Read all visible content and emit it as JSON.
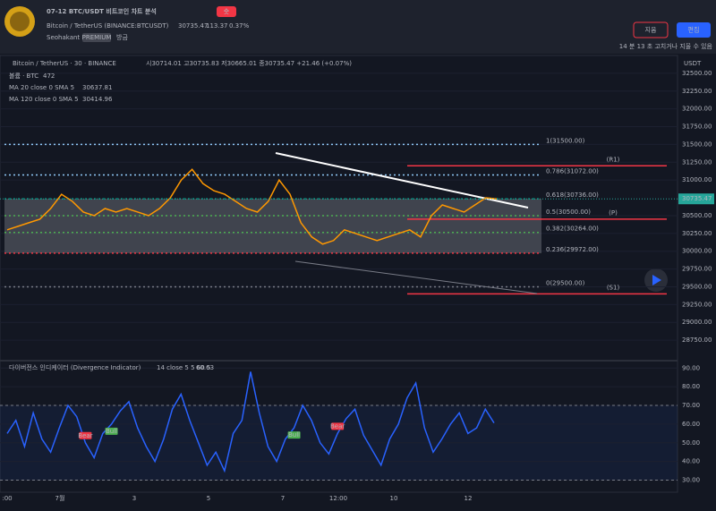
{
  "header": {
    "title": "07-12 BTC/USDT 비트코인 차트 분석",
    "tag": "숏",
    "symbol": "Bitcoin / TetherUS (BINANCE:BTCUSDT)",
    "price": "30735.47",
    "change": "113.37",
    "change_pct": "0.37%",
    "author": "Seohakant",
    "badge": "PREMIUM",
    "time": "방금",
    "delete_button": "지움",
    "edit_button": "편집",
    "edit_note": "14 분 13 초 고치거나 지울 수 있음"
  },
  "legend": {
    "symbol": "Bitcoin / TetherUS · 30 · BINANCE",
    "ohlc": "시30714.01 고30735.83 저30665.01 종30735.47 +21.46 (+0.07%)",
    "volume": "볼륨 · BTC",
    "volume_value": "472",
    "ma20": "MA 20 close 0 SMA 5",
    "ma20_value": "30637.81",
    "ma120": "MA 120 close 0 SMA 5",
    "ma120_value": "30414.96"
  },
  "chart_data": {
    "type": "line",
    "y_unit": "USDT",
    "ylim": [
      28500,
      32750
    ],
    "yticks": [
      {
        "value": 32500,
        "label": "32500.00"
      },
      {
        "value": 32250,
        "label": "32250.00"
      },
      {
        "value": 32000,
        "label": "32000.00"
      },
      {
        "value": 31750,
        "label": "31750.00"
      },
      {
        "value": 31500,
        "label": "31500.00"
      },
      {
        "value": 31250,
        "label": "31250.00"
      },
      {
        "value": 31000,
        "label": "31000.00"
      },
      {
        "value": 30500,
        "label": "30500.00"
      },
      {
        "value": 30250,
        "label": "30250.00"
      },
      {
        "value": 30000,
        "label": "30000.00"
      },
      {
        "value": 29750,
        "label": "29750.00"
      },
      {
        "value": 29500,
        "label": "29500.00"
      },
      {
        "value": 29250,
        "label": "29250.00"
      },
      {
        "value": 29000,
        "label": "29000.00"
      },
      {
        "value": 28750,
        "label": "28750.00"
      }
    ],
    "last_price": {
      "value": 30735.47,
      "label": "30735.47"
    },
    "series": [
      {
        "name": "Bitcoin / TetherUS",
        "color": "#ff9800",
        "values": [
          30300,
          30350,
          30400,
          30450,
          30600,
          30800,
          30700,
          30550,
          30500,
          30600,
          30550,
          30600,
          30550,
          30500,
          30600,
          30750,
          31000,
          31150,
          30950,
          30850,
          30800,
          30700,
          30600,
          30550,
          30700,
          31000,
          30800,
          30400,
          30200,
          30100,
          30150,
          30300,
          30250,
          30200,
          30150,
          30200,
          30250,
          30300,
          30200,
          30500,
          30650,
          30600,
          30550,
          30650,
          30750,
          30735.47
        ]
      }
    ],
    "fib_levels": [
      {
        "value": 31500,
        "label": "1(31500.00)"
      },
      {
        "value": 31072,
        "label": "0.786(31072.00)"
      },
      {
        "value": 30736,
        "label": "0.618(30736.00)"
      },
      {
        "value": 30500,
        "label": "0.5(30500.00)"
      },
      {
        "value": 30264,
        "label": "0.382(30264.00)"
      },
      {
        "value": 29972,
        "label": "0.236(29972.00)"
      },
      {
        "value": 29500,
        "label": "0(29500.00)"
      }
    ],
    "levels": [
      {
        "value": 31200,
        "label": "(R1)"
      },
      {
        "value": 30450,
        "label": "(P)"
      },
      {
        "value": 29400,
        "label": "(S1)"
      }
    ],
    "x_labels": [
      ":00",
      "7월",
      "3",
      "5",
      "7",
      "12:00",
      "10",
      "12"
    ]
  },
  "indicator": {
    "type": "line",
    "title": "다이버전스 인디케이터 (Divergence Indicator)",
    "params": "14 close 5 5 60 5",
    "value": "60.63",
    "color": "#2962ff",
    "ylim": [
      25,
      93
    ],
    "yticks": [
      {
        "value": 90,
        "label": "90.00"
      },
      {
        "value": 80,
        "label": "80.00"
      },
      {
        "value": 70,
        "label": "70.00"
      },
      {
        "value": 60,
        "label": "60.00"
      },
      {
        "value": 50,
        "label": "50.00"
      },
      {
        "value": 40,
        "label": "40.00"
      },
      {
        "value": 30,
        "label": "30.00"
      }
    ],
    "band": [
      30,
      70
    ],
    "values": [
      55,
      62,
      48,
      66,
      52,
      45,
      58,
      70,
      64,
      50,
      42,
      55,
      60,
      67,
      72,
      58,
      48,
      40,
      52,
      68,
      76,
      62,
      50,
      38,
      45,
      35,
      55,
      62,
      88,
      66,
      48,
      40,
      52,
      58,
      70,
      62,
      50,
      44,
      55,
      63,
      68,
      54,
      46,
      38,
      52,
      60,
      74,
      82,
      58,
      45,
      52,
      60,
      66,
      55,
      58,
      68,
      60.63
    ],
    "labels": [
      {
        "text": "Bear",
        "index": 9
      },
      {
        "text": "Bull",
        "index": 12
      },
      {
        "text": "Bull",
        "index": 33
      },
      {
        "text": "Bear",
        "index": 38
      }
    ]
  }
}
